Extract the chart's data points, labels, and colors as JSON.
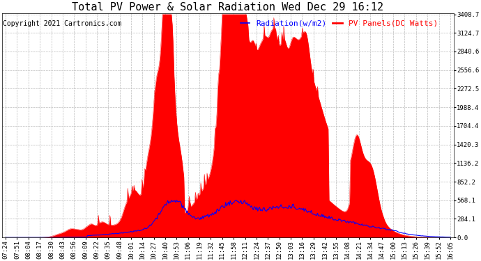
{
  "title": "Total PV Power & Solar Radiation Wed Dec 29 16:12",
  "copyright_text": "Copyright 2021 Cartronics.com",
  "legend_radiation": "Radiation(w/m2)",
  "legend_pv": "PV Panels(DC Watts)",
  "radiation_color": "blue",
  "pv_color": "red",
  "background_color": "#ffffff",
  "ymax": 3408.7,
  "yticks": [
    0.0,
    284.1,
    568.1,
    852.2,
    1136.2,
    1420.3,
    1704.4,
    1988.4,
    2272.5,
    2556.6,
    2840.6,
    3124.7,
    3408.7
  ],
  "x_labels": [
    "07:24",
    "07:51",
    "08:04",
    "08:17",
    "08:30",
    "08:43",
    "08:56",
    "09:09",
    "09:22",
    "09:35",
    "09:48",
    "10:01",
    "10:14",
    "10:27",
    "10:40",
    "10:53",
    "11:06",
    "11:19",
    "11:32",
    "11:45",
    "11:58",
    "12:11",
    "12:24",
    "12:37",
    "12:50",
    "13:03",
    "13:16",
    "13:29",
    "13:42",
    "13:55",
    "14:08",
    "14:21",
    "14:34",
    "14:47",
    "15:00",
    "15:13",
    "15:26",
    "15:39",
    "15:52",
    "16:05"
  ],
  "grid_color": "#bbbbbb",
  "grid_linestyle": "--",
  "title_fontsize": 11,
  "tick_fontsize": 6.5,
  "legend_fontsize": 8,
  "copyright_fontsize": 7
}
